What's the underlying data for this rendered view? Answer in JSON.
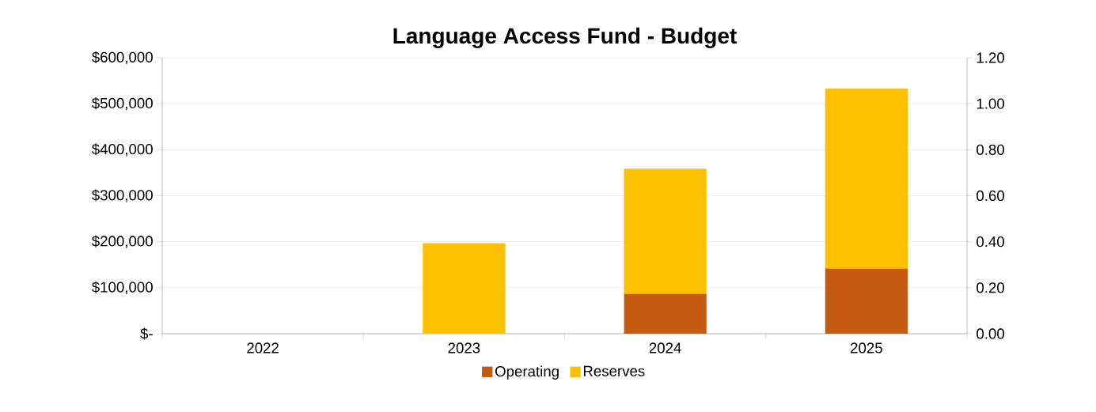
{
  "chart_data": {
    "type": "bar",
    "title": "Language Access Fund -  Budget",
    "categories": [
      "2022",
      "2023",
      "2024",
      "2025"
    ],
    "stacked": true,
    "series": [
      {
        "name": "Operating",
        "color": "#c55a11",
        "values": [
          0,
          0,
          87000,
          142000
        ]
      },
      {
        "name": "Reserves",
        "color": "#ffc000",
        "values": [
          0,
          197000,
          272000,
          391000
        ]
      }
    ],
    "ylim": [
      0,
      600000
    ],
    "yticks": [
      {
        "value": 0,
        "label": "$-"
      },
      {
        "value": 100000,
        "label": "$100,000"
      },
      {
        "value": 200000,
        "label": "$200,000"
      },
      {
        "value": 300000,
        "label": "$300,000"
      },
      {
        "value": 400000,
        "label": "$400,000"
      },
      {
        "value": 500000,
        "label": "$500,000"
      },
      {
        "value": 600000,
        "label": "$600,000"
      }
    ],
    "y2lim": [
      0,
      1.2
    ],
    "y2ticks": [
      {
        "value": 0,
        "label": "0.00"
      },
      {
        "value": 0.2,
        "label": "0.20"
      },
      {
        "value": 0.4,
        "label": "0.40"
      },
      {
        "value": 0.6,
        "label": "0.60"
      },
      {
        "value": 0.8,
        "label": "0.80"
      },
      {
        "value": 1.0,
        "label": "1.00"
      },
      {
        "value": 1.2,
        "label": "1.20"
      }
    ],
    "grid": "y",
    "legend": "bottom"
  }
}
